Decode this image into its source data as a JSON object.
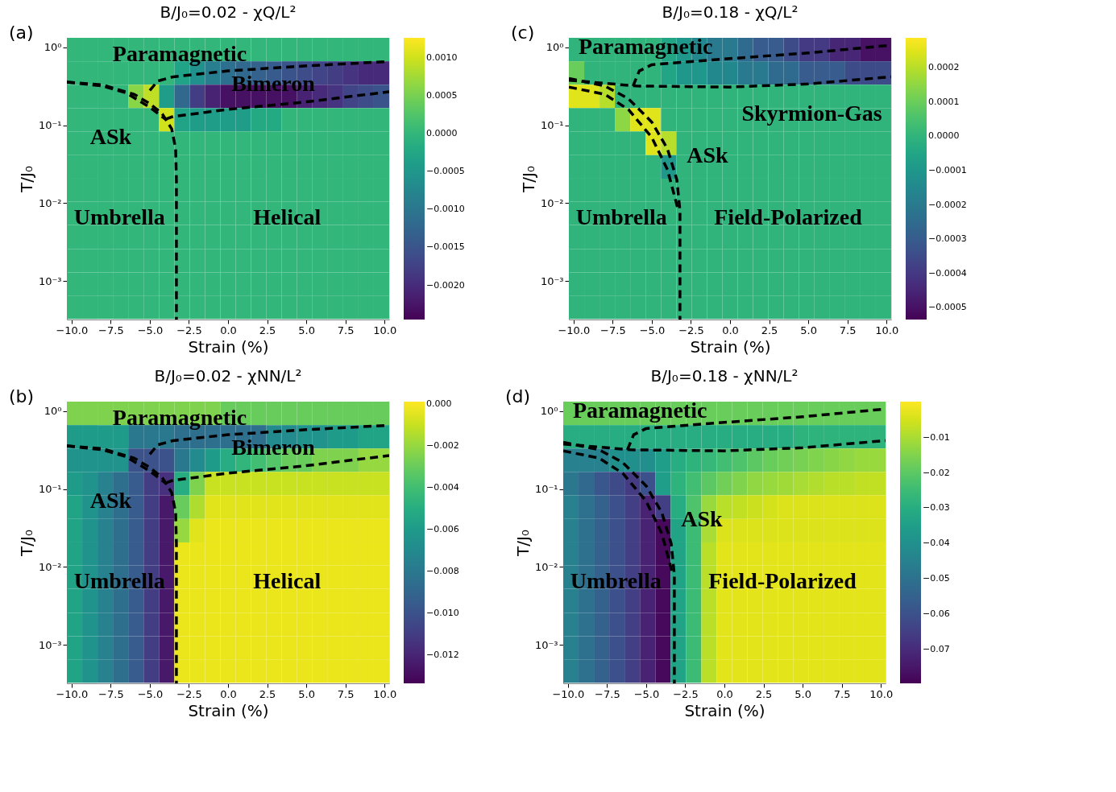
{
  "chart_data": [
    {
      "type": "heatmap",
      "title": "B/J₀=0.02 - χQ/L²",
      "xlabel": "Strain (%)",
      "ylabel": "T/J₀",
      "log": "y",
      "grid": false,
      "xlim": [
        -10.3,
        10.3
      ],
      "xticks": [
        {
          "value": -10,
          "label": "−10.0"
        },
        {
          "value": -7.5,
          "label": "−7.5"
        },
        {
          "value": -5,
          "label": "−5.0"
        },
        {
          "value": -2.5,
          "label": "−2.5"
        },
        {
          "value": 0,
          "label": "0.0"
        },
        {
          "value": 2.5,
          "label": "2.5"
        },
        {
          "value": 5,
          "label": "5.0"
        },
        {
          "value": 7.5,
          "label": "7.5"
        },
        {
          "value": 10,
          "label": "10.0"
        }
      ],
      "ylim": [
        0.00032,
        1.33
      ],
      "yticks": [
        {
          "value": 1,
          "label": "10⁰"
        },
        {
          "value": 0.1,
          "label": "10⁻¹"
        },
        {
          "value": 0.01,
          "label": "10⁻²"
        },
        {
          "value": 0.001,
          "label": "10⁻³"
        }
      ],
      "clim": [
        -0.00245,
        0.00126
      ],
      "cticks": [
        {
          "value": 0.001,
          "label": "0.0010"
        },
        {
          "value": 0.0005,
          "label": "0.0005"
        },
        {
          "value": 0,
          "label": "0.0000"
        },
        {
          "value": -0.0005,
          "label": "−0.0005"
        },
        {
          "value": -0.001,
          "label": "−0.0010"
        },
        {
          "value": -0.0015,
          "label": "−0.0015"
        },
        {
          "value": -0.002,
          "label": "−0.0020"
        }
      ],
      "x": [
        -9.81,
        -8.83,
        -7.85,
        -6.87,
        -5.89,
        -4.9,
        -3.92,
        -2.94,
        -1.96,
        -0.98,
        0,
        0.98,
        1.96,
        2.94,
        3.92,
        4.9,
        5.89,
        6.87,
        7.85,
        8.83,
        9.81
      ],
      "y": [
        0.94,
        0.47,
        0.235,
        0.118,
        0.059,
        0.029,
        0.0147,
        0.0074,
        0.0037,
        0.0018,
        0.00092,
        0.00046
      ],
      "cells": [
        [
          0,
          0,
          0,
          0,
          0,
          0,
          0,
          0,
          0,
          0,
          0,
          0,
          0,
          0,
          0,
          0,
          0,
          0,
          0,
          0,
          0
        ],
        [
          0,
          0,
          0,
          0,
          0,
          0,
          0,
          -0.0003,
          -0.0006,
          -0.0009,
          -0.0011,
          -0.0012,
          -0.0013,
          -0.0014,
          -0.0015,
          -0.0016,
          -0.0017,
          -0.0018,
          -0.0019,
          -0.002,
          -0.002
        ],
        [
          0,
          0,
          0,
          0,
          0.0006,
          0.0009,
          -0.0004,
          -0.0012,
          -0.0018,
          -0.0021,
          -0.0023,
          -0.0023,
          -0.0023,
          -0.0023,
          -0.0023,
          -0.0021,
          -0.002,
          -0.0019,
          -0.0017,
          -0.0016,
          -0.0015
        ],
        [
          0,
          0,
          0,
          0,
          0,
          0,
          0.001,
          -0.0003,
          -0.0004,
          -0.0004,
          -0.0004,
          -0.0004,
          -0.0002,
          -0.0002,
          0,
          0,
          0,
          0,
          0,
          0,
          0
        ],
        [
          0,
          0,
          0,
          0,
          0,
          0,
          0,
          0,
          0,
          0,
          0,
          0,
          0,
          0,
          0,
          0,
          0,
          0,
          0,
          0,
          0
        ],
        [
          0,
          0,
          0,
          0,
          0,
          0,
          0,
          0,
          0,
          0,
          0,
          0,
          0,
          0,
          0,
          0,
          0,
          0,
          0,
          0,
          0
        ],
        [
          0,
          0,
          0,
          0,
          0,
          0,
          0,
          0,
          0,
          0,
          0,
          0,
          0,
          0,
          0,
          0,
          0,
          0,
          0,
          0,
          0
        ],
        [
          0,
          0,
          0,
          0,
          0,
          0,
          0,
          0,
          0,
          0,
          0,
          0,
          0,
          0,
          0,
          0,
          0,
          0,
          0,
          0,
          0
        ],
        [
          0,
          0,
          0,
          0,
          0,
          0,
          0,
          0,
          0,
          0,
          0,
          0,
          0,
          0,
          0,
          0,
          0,
          0,
          0,
          0,
          0
        ],
        [
          0,
          0,
          0,
          0,
          0,
          0,
          0,
          0,
          0,
          0,
          0,
          0,
          0,
          0,
          0,
          0,
          0,
          0,
          0,
          0,
          0
        ],
        [
          0,
          0,
          0,
          0,
          0,
          0,
          0,
          0,
          0,
          0,
          0,
          0,
          0,
          0,
          0,
          0,
          0,
          0,
          0,
          0,
          0
        ],
        [
          0,
          0,
          0,
          0,
          0,
          0,
          0,
          0,
          0,
          0,
          0,
          0,
          0,
          0,
          0,
          0,
          0,
          0,
          0,
          0,
          0
        ]
      ],
      "series": [
        {
          "type": "line",
          "color": "#000000",
          "line_style": "dashed",
          "x": [
            -10.3,
            -8,
            -6,
            -5,
            -4.2,
            -3.6,
            -3.35,
            -3.3,
            -3.3
          ],
          "values": [
            0.36,
            0.33,
            0.25,
            0.19,
            0.14,
            0.09,
            0.05,
            0.02,
            0.00032
          ]
        },
        {
          "type": "line",
          "color": "#000000",
          "line_style": "dashed",
          "x": [
            -10.3,
            -8,
            -6.5,
            -5,
            -4
          ],
          "values": [
            0.36,
            0.32,
            0.26,
            0.17,
            0.12
          ]
        },
        {
          "type": "line",
          "color": "#000000",
          "line_style": "dashed",
          "x": [
            -5,
            -4.5,
            -3.5,
            0,
            5,
            10.3
          ],
          "values": [
            0.28,
            0.37,
            0.42,
            0.5,
            0.58,
            0.66
          ]
        },
        {
          "type": "line",
          "color": "#000000",
          "line_style": "dashed",
          "x": [
            -4,
            -3.5,
            0,
            5,
            10.3
          ],
          "values": [
            0.12,
            0.13,
            0.16,
            0.2,
            0.27
          ]
        }
      ],
      "annotations": [
        "(a)",
        "Paramagnetic",
        "Bimeron",
        "ASk",
        "Umbrella",
        "Helical"
      ]
    },
    {
      "type": "heatmap",
      "title": "B/J₀=0.18 - χQ/L²",
      "xlabel": "Strain (%)",
      "ylabel": "T/J₀",
      "log": "y",
      "grid": false,
      "xlim": [
        -10.3,
        10.3
      ],
      "xticks": [
        {
          "value": -10,
          "label": "−10.0"
        },
        {
          "value": -7.5,
          "label": "−7.5"
        },
        {
          "value": -5,
          "label": "−5.0"
        },
        {
          "value": -2.5,
          "label": "−2.5"
        },
        {
          "value": 0,
          "label": "0.0"
        },
        {
          "value": 2.5,
          "label": "2.5"
        },
        {
          "value": 5,
          "label": "5.0"
        },
        {
          "value": 7.5,
          "label": "7.5"
        },
        {
          "value": 10,
          "label": "10.0"
        }
      ],
      "ylim": [
        0.00032,
        1.33
      ],
      "yticks": [
        {
          "value": 1,
          "label": "10⁰"
        },
        {
          "value": 0.1,
          "label": "10⁻¹"
        },
        {
          "value": 0.01,
          "label": "10⁻²"
        },
        {
          "value": 0.001,
          "label": "10⁻³"
        }
      ],
      "clim": [
        -0.000535,
        0.000288
      ],
      "cticks": [
        {
          "value": 0.0002,
          "label": "0.0002"
        },
        {
          "value": 0.0001,
          "label": "0.0001"
        },
        {
          "value": 0,
          "label": "0.0000"
        },
        {
          "value": -0.0001,
          "label": "−0.0001"
        },
        {
          "value": -0.0002,
          "label": "−0.0002"
        },
        {
          "value": -0.0003,
          "label": "−0.0003"
        },
        {
          "value": -0.0004,
          "label": "−0.0004"
        },
        {
          "value": -0.0005,
          "label": "−0.0005"
        }
      ],
      "x": [
        -9.81,
        -8.83,
        -7.85,
        -6.87,
        -5.89,
        -4.9,
        -3.92,
        -2.94,
        -1.96,
        -0.98,
        0,
        0.98,
        1.96,
        2.94,
        3.92,
        4.9,
        5.89,
        6.87,
        7.85,
        8.83,
        9.81
      ],
      "y": [
        0.94,
        0.47,
        0.235,
        0.118,
        0.059,
        0.029,
        0.0147,
        0.0074,
        0.0037,
        0.0018,
        0.00092,
        0.00046
      ],
      "cells": [
        [
          0,
          0,
          0,
          0,
          0,
          0,
          -5e-05,
          -0.0001,
          -0.00015,
          -0.0002,
          -0.0002,
          -0.00025,
          -0.0003,
          -0.0003,
          -0.00035,
          -0.0004,
          -0.0004,
          -0.00045,
          -0.00045,
          -0.0005,
          -0.0005
        ],
        [
          0.0001,
          0,
          0,
          0,
          0,
          0,
          -5e-05,
          -0.0001,
          -0.0001,
          -0.00015,
          -0.00015,
          -0.0002,
          -0.0002,
          -0.00025,
          -0.00025,
          -0.0003,
          -0.0003,
          -0.0003,
          -0.00035,
          -0.00035,
          -0.00035
        ],
        [
          0.00025,
          0.00025,
          0.0002,
          0,
          0,
          0,
          0,
          0,
          0,
          0,
          0,
          0,
          0,
          0,
          0,
          0,
          0,
          0,
          0,
          0,
          0
        ],
        [
          0,
          0,
          0,
          0.00015,
          0.00025,
          0.00025,
          0,
          0,
          0,
          0,
          0,
          0,
          0,
          0,
          0,
          0,
          0,
          0,
          0,
          0,
          0
        ],
        [
          0,
          0,
          0,
          0,
          0,
          0.00025,
          0.0002,
          0,
          0,
          0,
          0,
          0,
          0,
          0,
          0,
          0,
          0,
          0,
          0,
          0,
          0
        ],
        [
          0,
          0,
          0,
          0,
          0,
          0,
          -0.0001,
          0,
          0,
          0,
          0,
          0,
          0,
          0,
          0,
          0,
          0,
          0,
          0,
          0,
          0
        ],
        [
          0,
          0,
          0,
          0,
          0,
          0,
          0,
          0,
          0,
          0,
          0,
          0,
          0,
          0,
          0,
          0,
          0,
          0,
          0,
          0,
          0
        ],
        [
          0,
          0,
          0,
          0,
          0,
          0,
          0,
          0,
          0,
          0,
          0,
          0,
          0,
          0,
          0,
          0,
          0,
          0,
          0,
          0,
          0
        ],
        [
          0,
          0,
          0,
          0,
          0,
          0,
          0,
          0,
          0,
          0,
          0,
          0,
          0,
          0,
          0,
          0,
          0,
          0,
          0,
          0,
          0
        ],
        [
          0,
          0,
          0,
          0,
          0,
          0,
          0,
          0,
          0,
          0,
          0,
          0,
          0,
          0,
          0,
          0,
          0,
          0,
          0,
          0,
          0
        ],
        [
          0,
          0,
          0,
          0,
          0,
          0,
          0,
          0,
          0,
          0,
          0,
          0,
          0,
          0,
          0,
          0,
          0,
          0,
          0,
          0,
          0
        ],
        [
          0,
          0,
          0,
          0,
          0,
          0,
          0,
          0,
          0,
          0,
          0,
          0,
          0,
          0,
          0,
          0,
          0,
          0,
          0,
          0,
          0
        ]
      ],
      "series": [
        {
          "type": "line",
          "color": "#000000",
          "line_style": "dashed",
          "x": [
            -10.3,
            -8,
            -6.5,
            -5,
            -4,
            -3.4,
            -3.2,
            -3.2
          ],
          "values": [
            0.4,
            0.32,
            0.22,
            0.11,
            0.05,
            0.02,
            0.008,
            0.00032
          ]
        },
        {
          "type": "line",
          "color": "#000000",
          "line_style": "dashed",
          "x": [
            -10.3,
            -8,
            -6.5,
            -5,
            -4,
            -3.3
          ],
          "values": [
            0.31,
            0.25,
            0.16,
            0.07,
            0.027,
            0.008
          ]
        },
        {
          "type": "line",
          "color": "#000000",
          "line_style": "dashed",
          "x": [
            -6.2,
            -5.8,
            -5,
            0,
            5,
            10.3
          ],
          "values": [
            0.32,
            0.5,
            0.6,
            0.72,
            0.85,
            1.07
          ]
        },
        {
          "type": "line",
          "color": "#000000",
          "line_style": "dashed",
          "x": [
            -10.3,
            -6,
            0,
            5,
            10.3
          ],
          "values": [
            0.38,
            0.32,
            0.31,
            0.34,
            0.42
          ]
        }
      ],
      "annotations": [
        "(c)",
        "Paramagnetic",
        "Skyrmion-Gas",
        "ASk",
        "Umbrella",
        "Field-Polarized"
      ]
    },
    {
      "type": "heatmap",
      "title": "B/J₀=0.02 - χNN/L²",
      "xlabel": "Strain (%)",
      "ylabel": "T/J₀",
      "log": "y",
      "grid": false,
      "xlim": [
        -10.3,
        10.3
      ],
      "xticks": [
        {
          "value": -10,
          "label": "−10.0"
        },
        {
          "value": -7.5,
          "label": "−7.5"
        },
        {
          "value": -5,
          "label": "−5.0"
        },
        {
          "value": -2.5,
          "label": "−2.5"
        },
        {
          "value": 0,
          "label": "0.0"
        },
        {
          "value": 2.5,
          "label": "2.5"
        },
        {
          "value": 5,
          "label": "5.0"
        },
        {
          "value": 7.5,
          "label": "7.5"
        },
        {
          "value": 10,
          "label": "10.0"
        }
      ],
      "ylim": [
        0.00032,
        1.33
      ],
      "yticks": [
        {
          "value": 1,
          "label": "10⁰"
        },
        {
          "value": 0.1,
          "label": "10⁻¹"
        },
        {
          "value": 0.01,
          "label": "10⁻²"
        },
        {
          "value": 0.001,
          "label": "10⁻³"
        }
      ],
      "clim": [
        -0.01336,
        0.0001
      ],
      "cticks": [
        {
          "value": 0,
          "label": "0.000"
        },
        {
          "value": -0.002,
          "label": "−0.002"
        },
        {
          "value": -0.004,
          "label": "−0.004"
        },
        {
          "value": -0.006,
          "label": "−0.006"
        },
        {
          "value": -0.008,
          "label": "−0.008"
        },
        {
          "value": -0.01,
          "label": "−0.010"
        },
        {
          "value": -0.012,
          "label": "−0.012"
        }
      ],
      "x": [
        -9.81,
        -8.83,
        -7.85,
        -6.87,
        -5.89,
        -4.9,
        -3.92,
        -2.94,
        -1.96,
        -0.98,
        0,
        0.98,
        1.96,
        2.94,
        3.92,
        4.9,
        5.89,
        6.87,
        7.85,
        8.83,
        9.81
      ],
      "y": [
        0.94,
        0.47,
        0.235,
        0.118,
        0.059,
        0.029,
        0.0147,
        0.0074,
        0.0037,
        0.0018,
        0.00092,
        0.00046
      ],
      "cells": [
        [
          -0.0025,
          -0.0025,
          -0.0025,
          -0.0025,
          -0.0025,
          -0.0025,
          -0.0025,
          -0.0025,
          -0.0025,
          -0.0025,
          -0.003,
          -0.003,
          -0.003,
          -0.003,
          -0.003,
          -0.003,
          -0.003,
          -0.003,
          -0.003,
          -0.003,
          -0.003
        ],
        [
          -0.006,
          -0.006,
          -0.006,
          -0.006,
          -0.008,
          -0.008,
          -0.008,
          -0.0085,
          -0.0085,
          -0.0085,
          -0.0085,
          -0.0085,
          -0.0085,
          -0.007,
          -0.007,
          -0.0065,
          -0.0065,
          -0.006,
          -0.006,
          -0.0055,
          -0.0055
        ],
        [
          -0.0065,
          -0.0065,
          -0.0065,
          -0.0065,
          -0.01,
          -0.01,
          -0.01,
          -0.008,
          -0.007,
          -0.006,
          -0.005,
          -0.0045,
          -0.004,
          -0.0035,
          -0.003,
          -0.003,
          -0.0025,
          -0.0025,
          -0.0025,
          -0.002,
          -0.002
        ],
        [
          -0.006,
          -0.0065,
          -0.0075,
          -0.0085,
          -0.0095,
          -0.011,
          -0.0115,
          -0.005,
          -0.0025,
          -0.001,
          -0.001,
          -0.001,
          -0.001,
          -0.001,
          -0.001,
          -0.001,
          -0.001,
          -0.001,
          -0.001,
          -0.001,
          -0.001
        ],
        [
          -0.0055,
          -0.0065,
          -0.0075,
          -0.0085,
          -0.0095,
          -0.011,
          -0.0125,
          -0.003,
          -0.0015,
          -0.0005,
          -0.0005,
          -0.0005,
          -0.0005,
          -0.0005,
          -0.0005,
          -0.0005,
          -0.0005,
          -0.0005,
          -0.0005,
          -0.0005,
          -0.0005
        ],
        [
          -0.0055,
          -0.0065,
          -0.0075,
          -0.0085,
          -0.0095,
          -0.011,
          -0.0125,
          -0.002,
          -0.0005,
          -0.0003,
          -0.0003,
          -0.0003,
          -0.0003,
          -0.0003,
          -0.0003,
          -0.0003,
          -0.0003,
          -0.0003,
          -0.0003,
          -0.0003,
          -0.0003
        ],
        [
          -0.0055,
          -0.0065,
          -0.0075,
          -0.0085,
          -0.0095,
          -0.011,
          -0.0125,
          -0.0003,
          -0.0003,
          -0.0003,
          -0.0003,
          -0.0003,
          -0.0003,
          -0.0003,
          -0.0003,
          -0.0003,
          -0.0003,
          -0.0003,
          -0.0003,
          -0.0003,
          -0.0003
        ],
        [
          -0.0055,
          -0.0065,
          -0.0075,
          -0.0085,
          -0.0095,
          -0.011,
          -0.0125,
          -0.0003,
          -0.0003,
          -0.0003,
          -0.0003,
          -0.0003,
          -0.0003,
          -0.0003,
          -0.0003,
          -0.0003,
          -0.0003,
          -0.0003,
          -0.0003,
          -0.0003,
          -0.0003
        ],
        [
          -0.0055,
          -0.0065,
          -0.0075,
          -0.0085,
          -0.0095,
          -0.011,
          -0.0125,
          -0.0003,
          -0.0003,
          -0.0003,
          -0.0003,
          -0.0003,
          -0.0003,
          -0.0003,
          -0.0003,
          -0.0003,
          -0.0003,
          -0.0003,
          -0.0003,
          -0.0003,
          -0.0003
        ],
        [
          -0.0055,
          -0.0065,
          -0.0075,
          -0.0085,
          -0.0095,
          -0.011,
          -0.0125,
          -0.0003,
          -0.0003,
          -0.0003,
          -0.0003,
          -0.0003,
          -0.0003,
          -0.0003,
          -0.0003,
          -0.0003,
          -0.0003,
          -0.0003,
          -0.0003,
          -0.0003,
          -0.0003
        ],
        [
          -0.0055,
          -0.0065,
          -0.0075,
          -0.0085,
          -0.0095,
          -0.011,
          -0.0125,
          -0.0003,
          -0.0003,
          -0.0003,
          -0.0003,
          -0.0003,
          -0.0003,
          -0.0003,
          -0.0003,
          -0.0003,
          -0.0003,
          -0.0003,
          -0.0003,
          -0.0003,
          -0.0003
        ],
        [
          -0.0055,
          -0.0065,
          -0.0075,
          -0.0085,
          -0.0095,
          -0.011,
          -0.0125,
          -0.0003,
          -0.0003,
          -0.0003,
          -0.0003,
          -0.0003,
          -0.0003,
          -0.0003,
          -0.0003,
          -0.0003,
          -0.0003,
          -0.0003,
          -0.0003,
          -0.0003,
          -0.0003
        ]
      ],
      "series": [
        {
          "type": "line",
          "color": "#000000",
          "line_style": "dashed",
          "x": [
            -10.3,
            -8,
            -6,
            -5,
            -4.2,
            -3.6,
            -3.35,
            -3.3,
            -3.3
          ],
          "values": [
            0.36,
            0.33,
            0.25,
            0.19,
            0.14,
            0.09,
            0.05,
            0.02,
            0.00032
          ]
        },
        {
          "type": "line",
          "color": "#000000",
          "line_style": "dashed",
          "x": [
            -10.3,
            -8,
            -6.5,
            -5,
            -4
          ],
          "values": [
            0.36,
            0.32,
            0.26,
            0.17,
            0.12
          ]
        },
        {
          "type": "line",
          "color": "#000000",
          "line_style": "dashed",
          "x": [
            -5,
            -4.5,
            -3.5,
            0,
            5,
            10.3
          ],
          "values": [
            0.28,
            0.37,
            0.42,
            0.5,
            0.58,
            0.66
          ]
        },
        {
          "type": "line",
          "color": "#000000",
          "line_style": "dashed",
          "x": [
            -4,
            -3.5,
            0,
            5,
            10.3
          ],
          "values": [
            0.12,
            0.13,
            0.16,
            0.2,
            0.27
          ]
        }
      ],
      "annotations": [
        "(b)",
        "Paramagnetic",
        "Bimeron",
        "ASk",
        "Umbrella",
        "Helical"
      ]
    },
    {
      "type": "heatmap",
      "title": "B/J₀=0.18 - χNN/L²",
      "xlabel": "Strain (%)",
      "ylabel": "T/J₀",
      "log": "y",
      "grid": false,
      "xlim": [
        -10.3,
        10.3
      ],
      "xticks": [
        {
          "value": -10,
          "label": "−10.0"
        },
        {
          "value": -7.5,
          "label": "−7.5"
        },
        {
          "value": -5,
          "label": "−5.0"
        },
        {
          "value": -2.5,
          "label": "−2.5"
        },
        {
          "value": 0,
          "label": "0.0"
        },
        {
          "value": 2.5,
          "label": "2.5"
        },
        {
          "value": 5,
          "label": "5.0"
        },
        {
          "value": 7.5,
          "label": "7.5"
        },
        {
          "value": 10,
          "label": "10.0"
        }
      ],
      "ylim": [
        0.00032,
        1.33
      ],
      "yticks": [
        {
          "value": 1,
          "label": "10⁰"
        },
        {
          "value": 0.1,
          "label": "10⁻¹"
        },
        {
          "value": 0.01,
          "label": "10⁻²"
        },
        {
          "value": 0.001,
          "label": "10⁻³"
        }
      ],
      "clim": [
        -0.0796,
        0.0002
      ],
      "cticks": [
        {
          "value": -0.01,
          "label": "−0.01"
        },
        {
          "value": -0.02,
          "label": "−0.02"
        },
        {
          "value": -0.03,
          "label": "−0.03"
        },
        {
          "value": -0.04,
          "label": "−0.04"
        },
        {
          "value": -0.05,
          "label": "−0.05"
        },
        {
          "value": -0.06,
          "label": "−0.06"
        },
        {
          "value": -0.07,
          "label": "−0.07"
        }
      ],
      "x": [
        -9.81,
        -8.83,
        -7.85,
        -6.87,
        -5.89,
        -4.9,
        -3.92,
        -2.94,
        -1.96,
        -0.98,
        0,
        0.98,
        1.96,
        2.94,
        3.92,
        4.9,
        5.89,
        6.87,
        7.85,
        8.83,
        9.81
      ],
      "y": [
        0.94,
        0.47,
        0.235,
        0.118,
        0.059,
        0.029,
        0.0147,
        0.0074,
        0.0037,
        0.0018,
        0.00092,
        0.00046
      ],
      "cells": [
        [
          -0.018,
          -0.018,
          -0.018,
          -0.018,
          -0.018,
          -0.018,
          -0.018,
          -0.018,
          -0.018,
          -0.018,
          -0.018,
          -0.018,
          -0.018,
          -0.018,
          -0.018,
          -0.018,
          -0.018,
          -0.018,
          -0.018,
          -0.018,
          -0.018
        ],
        [
          -0.03,
          -0.03,
          -0.03,
          -0.03,
          -0.03,
          -0.03,
          -0.03,
          -0.03,
          -0.03,
          -0.03,
          -0.03,
          -0.03,
          -0.03,
          -0.03,
          -0.03,
          -0.028,
          -0.028,
          -0.028,
          -0.028,
          -0.028,
          -0.028
        ],
        [
          -0.045,
          -0.045,
          -0.045,
          -0.04,
          -0.04,
          -0.04,
          -0.035,
          -0.03,
          -0.028,
          -0.026,
          -0.024,
          -0.022,
          -0.02,
          -0.018,
          -0.017,
          -0.016,
          -0.015,
          -0.014,
          -0.013,
          -0.012,
          -0.012
        ],
        [
          -0.048,
          -0.053,
          -0.058,
          -0.062,
          -0.066,
          -0.06,
          -0.035,
          -0.028,
          -0.024,
          -0.02,
          -0.017,
          -0.015,
          -0.013,
          -0.012,
          -0.011,
          -0.01,
          -0.009,
          -0.008,
          -0.008,
          -0.007,
          -0.007
        ],
        [
          -0.045,
          -0.05,
          -0.055,
          -0.06,
          -0.065,
          -0.072,
          -0.065,
          -0.03,
          -0.022,
          -0.012,
          -0.008,
          -0.007,
          -0.006,
          -0.005,
          -0.004,
          -0.004,
          -0.004,
          -0.004,
          -0.004,
          -0.004,
          -0.004
        ],
        [
          -0.045,
          -0.05,
          -0.055,
          -0.06,
          -0.065,
          -0.072,
          -0.078,
          -0.033,
          -0.025,
          -0.01,
          -0.004,
          -0.004,
          -0.004,
          -0.004,
          -0.004,
          -0.004,
          -0.004,
          -0.004,
          -0.004,
          -0.004,
          -0.004
        ],
        [
          -0.045,
          -0.05,
          -0.055,
          -0.06,
          -0.065,
          -0.072,
          -0.078,
          -0.033,
          -0.025,
          -0.008,
          -0.003,
          -0.003,
          -0.003,
          -0.003,
          -0.003,
          -0.003,
          -0.003,
          -0.003,
          -0.003,
          -0.003,
          -0.003
        ],
        [
          -0.045,
          -0.05,
          -0.055,
          -0.06,
          -0.065,
          -0.072,
          -0.078,
          -0.033,
          -0.025,
          -0.008,
          -0.003,
          -0.003,
          -0.003,
          -0.003,
          -0.003,
          -0.003,
          -0.003,
          -0.003,
          -0.003,
          -0.003,
          -0.003
        ],
        [
          -0.045,
          -0.05,
          -0.055,
          -0.06,
          -0.065,
          -0.072,
          -0.078,
          -0.033,
          -0.025,
          -0.008,
          -0.003,
          -0.003,
          -0.003,
          -0.003,
          -0.003,
          -0.003,
          -0.003,
          -0.003,
          -0.003,
          -0.003,
          -0.003
        ],
        [
          -0.045,
          -0.05,
          -0.055,
          -0.06,
          -0.065,
          -0.072,
          -0.078,
          -0.033,
          -0.025,
          -0.008,
          -0.003,
          -0.003,
          -0.003,
          -0.003,
          -0.003,
          -0.003,
          -0.003,
          -0.003,
          -0.003,
          -0.003,
          -0.003
        ],
        [
          -0.045,
          -0.05,
          -0.055,
          -0.06,
          -0.065,
          -0.072,
          -0.078,
          -0.033,
          -0.025,
          -0.008,
          -0.003,
          -0.003,
          -0.003,
          -0.003,
          -0.003,
          -0.003,
          -0.003,
          -0.003,
          -0.003,
          -0.003,
          -0.003
        ],
        [
          -0.045,
          -0.05,
          -0.055,
          -0.06,
          -0.065,
          -0.072,
          -0.078,
          -0.033,
          -0.025,
          -0.008,
          -0.003,
          -0.003,
          -0.003,
          -0.003,
          -0.003,
          -0.003,
          -0.003,
          -0.003,
          -0.003,
          -0.003,
          -0.003
        ]
      ],
      "series": [
        {
          "type": "line",
          "color": "#000000",
          "line_style": "dashed",
          "x": [
            -10.3,
            -8,
            -6.5,
            -5,
            -4,
            -3.4,
            -3.2,
            -3.2
          ],
          "values": [
            0.4,
            0.32,
            0.22,
            0.11,
            0.05,
            0.02,
            0.008,
            0.00032
          ]
        },
        {
          "type": "line",
          "color": "#000000",
          "line_style": "dashed",
          "x": [
            -10.3,
            -8,
            -6.5,
            -5,
            -4,
            -3.3
          ],
          "values": [
            0.31,
            0.25,
            0.16,
            0.07,
            0.027,
            0.008
          ]
        },
        {
          "type": "line",
          "color": "#000000",
          "line_style": "dashed",
          "x": [
            -6.2,
            -5.8,
            -5,
            0,
            5,
            10.3
          ],
          "values": [
            0.32,
            0.5,
            0.6,
            0.72,
            0.85,
            1.07
          ]
        },
        {
          "type": "line",
          "color": "#000000",
          "line_style": "dashed",
          "x": [
            -10.3,
            -6,
            0,
            5,
            10.3
          ],
          "values": [
            0.38,
            0.32,
            0.31,
            0.34,
            0.42
          ]
        }
      ],
      "annotations": [
        "(d)",
        "Paramagnetic",
        "ASk",
        "Umbrella",
        "Field-Polarized"
      ]
    }
  ]
}
